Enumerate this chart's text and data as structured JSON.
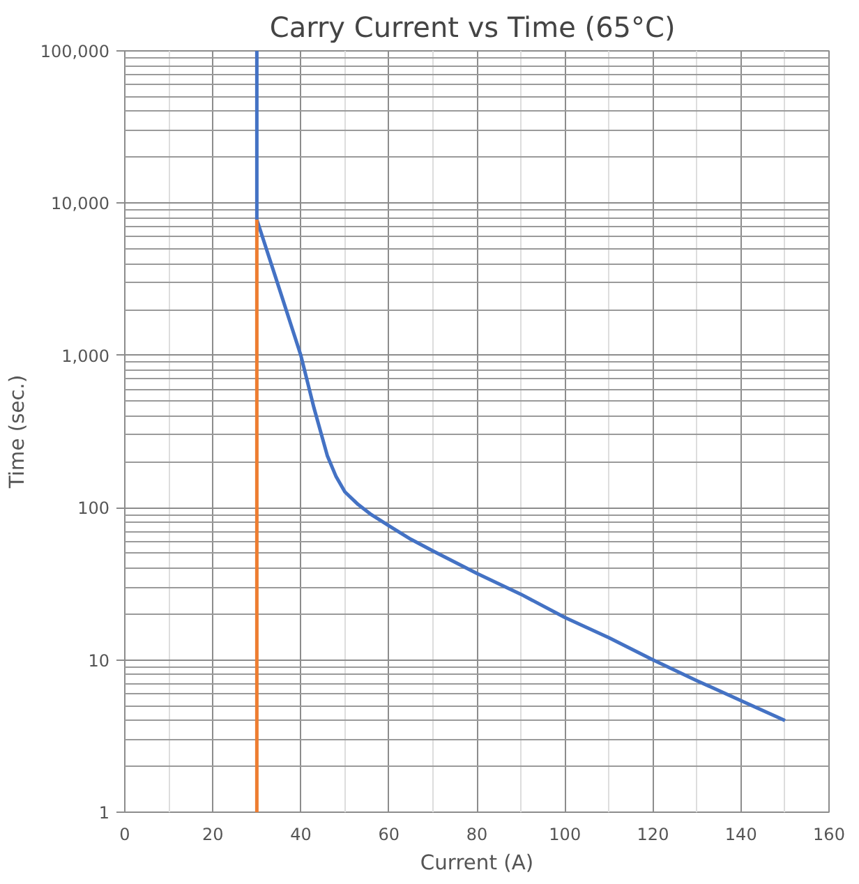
{
  "chart_data": {
    "type": "line",
    "title": "Carry  Current vs Time (65°C)",
    "xlabel": "Current (A)",
    "ylabel": "Time (sec.)",
    "log": "y",
    "grid": true,
    "marker": "none",
    "line_style": "solid",
    "xlim": [
      0,
      160
    ],
    "xticks": [
      0,
      20,
      40,
      60,
      80,
      100,
      120,
      140,
      160
    ],
    "ylim": [
      1,
      100000
    ],
    "yticks": [
      {
        "value": 1,
        "label": "1"
      },
      {
        "value": 10,
        "label": "10"
      },
      {
        "value": 100,
        "label": "100"
      },
      {
        "value": 1000,
        "label": "1,000"
      },
      {
        "value": 10000,
        "label": "10,000"
      },
      {
        "value": 100000,
        "label": "100,000"
      }
    ],
    "series": [
      {
        "color": "#4472c4",
        "x": [
          30,
          30,
          35,
          40,
          43,
          46,
          48,
          50,
          53,
          56,
          60,
          65,
          70,
          80,
          90,
          100,
          110,
          120,
          130,
          140,
          150
        ],
        "values": [
          100000,
          7800,
          2800,
          1000,
          450,
          220,
          160,
          127,
          105,
          90,
          76,
          62,
          52,
          37,
          27,
          19,
          14,
          10,
          7.3,
          5.4,
          4
        ]
      },
      {
        "color": "#ed7d31",
        "x": [
          30,
          30
        ],
        "values": [
          1,
          7800
        ]
      }
    ]
  }
}
